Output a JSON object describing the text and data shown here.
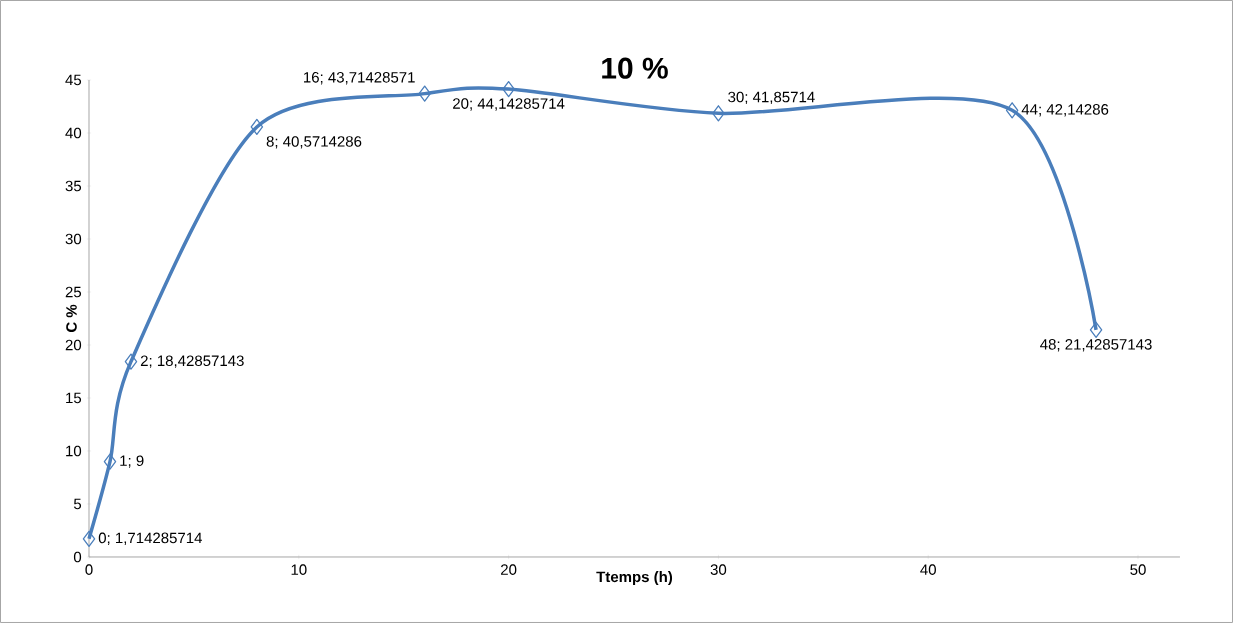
{
  "chart_data": {
    "type": "line",
    "title": "10 %",
    "xlabel": "Ttemps (h)",
    "ylabel": "C %",
    "x": [
      0,
      1,
      2,
      8,
      16,
      20,
      30,
      44,
      48
    ],
    "series": [
      {
        "color": "#4a7ebb",
        "values": [
          1.714285714,
          9,
          18.42857143,
          40.5714286,
          43.71428571,
          44.14285714,
          41.85714,
          42.14286,
          21.42857143
        ],
        "value_labels": [
          "0; 1,714285714",
          "1; 9",
          "2; 18,42857143",
          "8; 40,5714286",
          "16; 43,71428571",
          "20; 44,14285714",
          "30; 41,85714",
          "44; 42,14286",
          "48; 21,42857143"
        ]
      }
    ],
    "xlim": [
      0,
      52
    ],
    "ylim": [
      0,
      45
    ],
    "xticks": [
      0,
      10,
      20,
      30,
      40,
      50
    ],
    "yticks": [
      0,
      5,
      10,
      15,
      20,
      25,
      30,
      35,
      40,
      45
    ],
    "marker": "diamond",
    "line_style": "solid"
  }
}
